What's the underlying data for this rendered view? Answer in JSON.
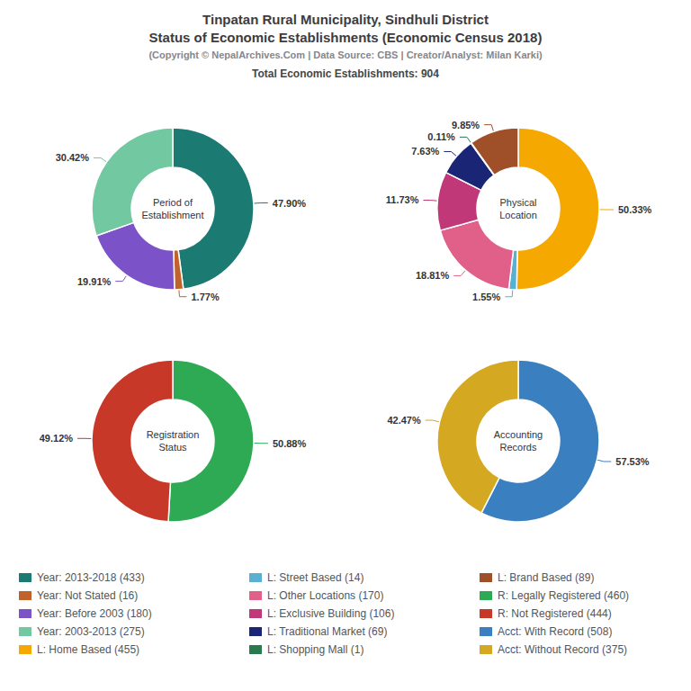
{
  "title": "Tinpatan Rural Municipality, Sindhuli District\nStatus of Economic Establishments (Economic Census 2018)",
  "subtitle": "(Copyright © NepalArchives.Com | Data Source: CBS | Creator/Analyst: Milan Karki)",
  "annotations": [
    "Total Economic Establishments: 904"
  ],
  "legend": "bottom",
  "chart_data": [
    {
      "type": "pie",
      "title": "Period of\nEstablishment",
      "categories": [
        "Year: 2013-2018 (433)",
        "Year: Not Stated (16)",
        "Year: Before 2003 (180)",
        "Year: 2003-2013 (275)"
      ],
      "values": [
        47.9,
        1.77,
        19.91,
        30.42
      ],
      "value_labels": [
        "47.90%",
        "1.77%",
        "19.91%",
        "30.42%"
      ],
      "colors": [
        "#1b7a72",
        "#c0622a",
        "#7b52c8",
        "#72c8a0"
      ],
      "data_labels": true
    },
    {
      "type": "pie",
      "title": "Physical\nLocation",
      "categories": [
        "L: Home Based (455)",
        "L: Street Based (14)",
        "L: Other Locations (170)",
        "L: Exclusive Building (106)",
        "L: Traditional Market (69)",
        "L: Shopping Mall (1)",
        "L: Brand Based (89)"
      ],
      "values": [
        50.33,
        1.55,
        18.81,
        11.73,
        7.63,
        0.11,
        9.85
      ],
      "value_labels": [
        "50.33%",
        "1.55%",
        "18.81%",
        "11.73%",
        "7.63%",
        "0.11%",
        "9.85%"
      ],
      "colors": [
        "#f5a800",
        "#5ab0d0",
        "#e0608a",
        "#c03878",
        "#1a2575",
        "#2a7a50",
        "#a05028"
      ],
      "data_labels": true
    },
    {
      "type": "pie",
      "title": "Registration\nStatus",
      "categories": [
        "R: Legally Registered (460)",
        "R: Not Registered (444)"
      ],
      "values": [
        50.88,
        49.12
      ],
      "value_labels": [
        "50.88%",
        "49.12%"
      ],
      "colors": [
        "#2eaa55",
        "#c83828"
      ],
      "data_labels": true
    },
    {
      "type": "pie",
      "title": "Accounting\nRecords",
      "categories": [
        "Acct: With Record (508)",
        "Acct: Without Record (375)"
      ],
      "values": [
        57.53,
        42.47
      ],
      "value_labels": [
        "57.53%",
        "42.47%"
      ],
      "colors": [
        "#3a80c0",
        "#d4a820"
      ],
      "data_labels": true
    }
  ]
}
